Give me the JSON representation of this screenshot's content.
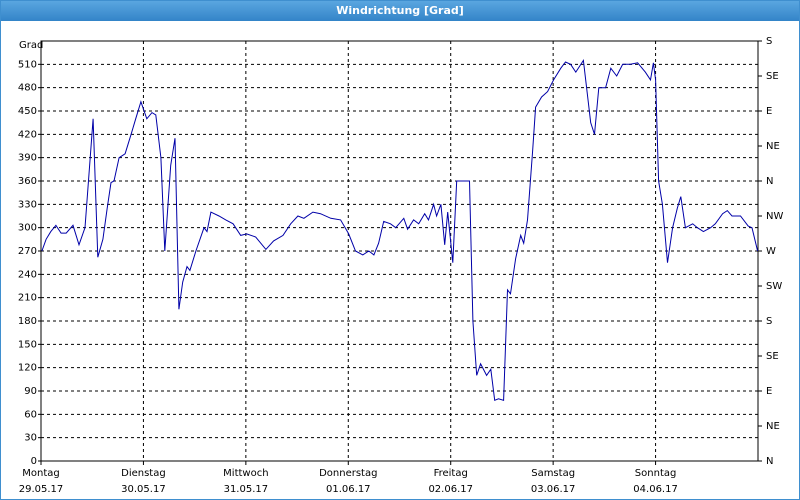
{
  "chart_data": {
    "type": "line",
    "title": "Windrichtung [Grad]",
    "y_label": "Grad",
    "xlim": [
      0,
      168
    ],
    "xticks": [
      {
        "value": 0,
        "label": "Montag",
        "date": "29.05.17"
      },
      {
        "value": 24,
        "label": "Dienstag",
        "date": "30.05.17"
      },
      {
        "value": 48,
        "label": "Mittwoch",
        "date": "31.05.17"
      },
      {
        "value": 72,
        "label": "Donnerstag",
        "date": "01.06.17"
      },
      {
        "value": 96,
        "label": "Freitag",
        "date": "02.06.17"
      },
      {
        "value": 120,
        "label": "Samstag",
        "date": "03.06.17"
      },
      {
        "value": 144,
        "label": "Sonntag",
        "date": "04.06.17"
      }
    ],
    "ylim": [
      0,
      540
    ],
    "yticks": [
      0,
      30,
      60,
      90,
      120,
      150,
      180,
      210,
      240,
      270,
      300,
      330,
      360,
      390,
      420,
      450,
      480,
      510
    ],
    "y2lim": [
      0,
      540
    ],
    "y2ticks": [
      {
        "value": 0,
        "label": "N"
      },
      {
        "value": 45,
        "label": "NE"
      },
      {
        "value": 90,
        "label": "E"
      },
      {
        "value": 135,
        "label": "SE"
      },
      {
        "value": 180,
        "label": "S"
      },
      {
        "value": 225,
        "label": "SW"
      },
      {
        "value": 270,
        "label": "W"
      },
      {
        "value": 315,
        "label": "NW"
      },
      {
        "value": 360,
        "label": "N"
      },
      {
        "value": 405,
        "label": "NE"
      },
      {
        "value": 450,
        "label": "E"
      },
      {
        "value": 495,
        "label": "SE"
      },
      {
        "value": 540,
        "label": "S"
      }
    ],
    "grid": true,
    "series": [
      {
        "name": "Windrichtung",
        "color": "#0000a8",
        "x": [
          0.2,
          1.2,
          2.3,
          3.5,
          4.7,
          5.9,
          7.5,
          8.9,
          10.3,
          12.2,
          13.3,
          14.5,
          15.5,
          16.4,
          17.1,
          18.3,
          19.7,
          21.1,
          22.2,
          23.4,
          24.8,
          26.0,
          26.9,
          28.1,
          29.0,
          30.4,
          31.4,
          32.3,
          33.2,
          34.2,
          34.9,
          36.3,
          38.2,
          38.9,
          39.8,
          41.7,
          43.3,
          45.0,
          46.8,
          48.2,
          50.3,
          52.7,
          54.5,
          56.7,
          58.5,
          60.2,
          61.6,
          63.7,
          65.5,
          67.9,
          70.2,
          72.1,
          73.7,
          75.4,
          76.8,
          78.0,
          79.1,
          80.3,
          81.9,
          83.1,
          85.0,
          85.9,
          87.3,
          88.5,
          89.9,
          90.8,
          92.0,
          92.7,
          93.7,
          94.6,
          95.3,
          96.5,
          97.4,
          100.4,
          101.2,
          102.1,
          103.0,
          104.4,
          105.4,
          106.3,
          107.2,
          108.4,
          109.3,
          110.0,
          111.2,
          112.4,
          113.1,
          114.0,
          115.2,
          115.9,
          117.3,
          118.7,
          120.1,
          121.8,
          122.9,
          124.1,
          125.3,
          127.1,
          128.8,
          129.7,
          130.7,
          132.3,
          133.5,
          134.9,
          136.3,
          138.1,
          139.8,
          141.6,
          142.8,
          143.5,
          144.0,
          144.7,
          145.6,
          146.8,
          148.0,
          149.1,
          149.9,
          151.0,
          152.7,
          153.8,
          155.2,
          156.9,
          158.0,
          159.7,
          160.8,
          161.9,
          163.9,
          165.7,
          166.6,
          167.9
        ],
        "values": [
          270,
          285,
          295,
          303,
          293,
          293,
          303,
          278,
          300,
          440,
          262,
          285,
          325,
          358,
          360,
          390,
          395,
          420,
          440,
          462,
          440,
          448,
          445,
          390,
          270,
          380,
          415,
          195,
          230,
          250,
          245,
          270,
          300,
          295,
          320,
          315,
          310,
          305,
          290,
          292,
          288,
          272,
          283,
          290,
          305,
          315,
          312,
          320,
          318,
          312,
          310,
          292,
          270,
          265,
          270,
          265,
          280,
          308,
          305,
          300,
          312,
          298,
          310,
          305,
          318,
          310,
          330,
          315,
          330,
          278,
          320,
          255,
          360,
          360,
          180,
          110,
          125,
          110,
          118,
          78,
          80,
          78,
          220,
          215,
          260,
          290,
          280,
          310,
          400,
          455,
          468,
          475,
          490,
          505,
          513,
          510,
          500,
          515,
          435,
          420,
          480,
          480,
          505,
          495,
          510,
          510,
          512,
          500,
          490,
          512,
          490,
          360,
          330,
          255,
          300,
          325,
          340,
          300,
          305,
          300,
          295,
          300,
          305,
          318,
          322,
          315,
          315,
          302,
          300,
          270
        ]
      }
    ]
  }
}
